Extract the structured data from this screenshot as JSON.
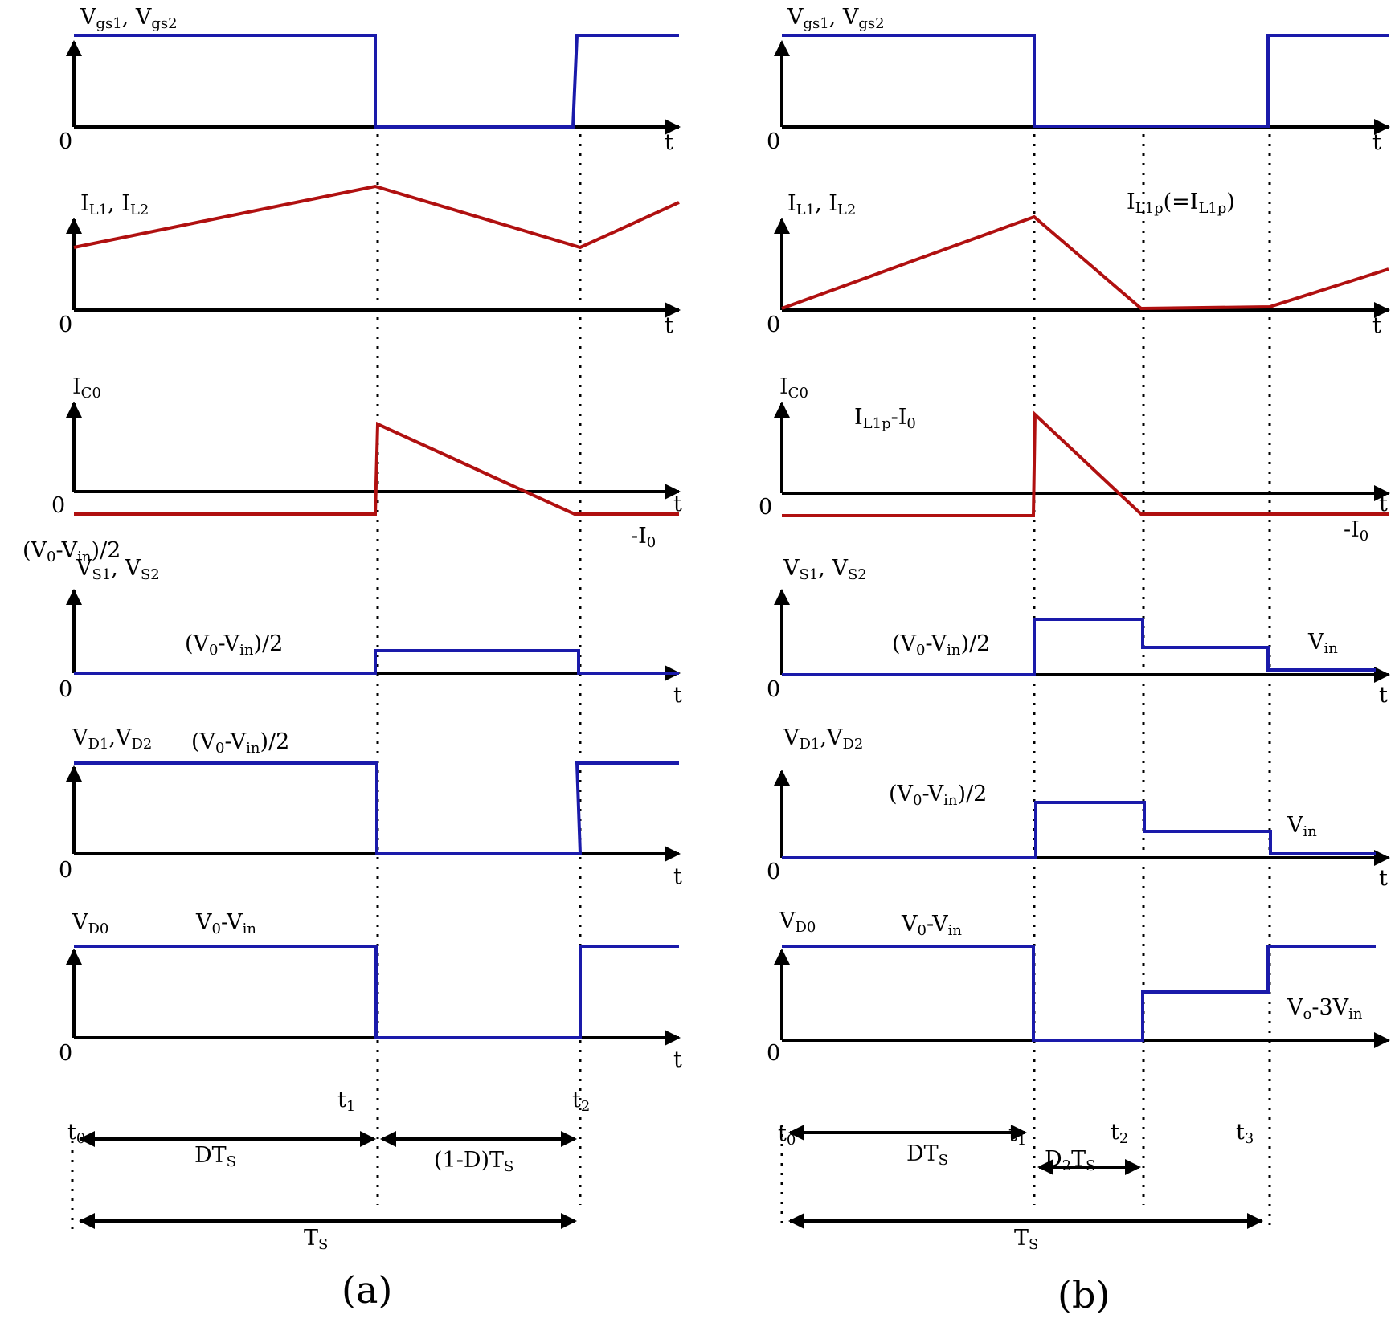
{
  "panels": {
    "a": {
      "caption": "(a)",
      "origin": "0",
      "t": "t",
      "vgs": {
        "label": "V",
        "s1": "gs1",
        "mid": ", V",
        "s2": "gs2"
      },
      "il": {
        "label": "I",
        "s1": "L1",
        "mid": ", I",
        "s2": "L2"
      },
      "ic": {
        "label": "I",
        "s1": "C0",
        "neg_pre": "-I",
        "neg_sub": "0"
      },
      "vs": {
        "label": "V",
        "s1": "S1",
        "mid": ", V",
        "s2": "S2",
        "top_a": "(V",
        "top_b": "0",
        "top_c": "-V",
        "top_d": "in",
        "top_e": ")/2",
        "lvl_a": "(V",
        "lvl_b": "0",
        "lvl_c": "-V",
        "lvl_d": "in",
        "lvl_e": ")/2"
      },
      "vd": {
        "label": "V",
        "s1": "D1",
        "mid": ",V",
        "s2": "D2",
        "lvl_a": "(V",
        "lvl_b": "0",
        "lvl_c": "-V",
        "lvl_d": "in",
        "lvl_e": ")/2"
      },
      "vd0": {
        "label": "V",
        "s1": "D0",
        "lvl_a": "V",
        "lvl_b": "0",
        "lvl_c": "-V",
        "lvl_d": "in"
      },
      "timing": {
        "t": "t",
        "t0": "0",
        "t1": "1",
        "t2": "2",
        "dts": "DT",
        "dts_sub": "S",
        "odts": "(1-D)T",
        "odts_sub": "S",
        "ts": "T",
        "ts_sub": "S"
      }
    },
    "b": {
      "caption": "(b)",
      "origin": "0",
      "t": "t",
      "vgs": {
        "label": "V",
        "s1": "gs1",
        "mid": ", V",
        "s2": "gs2"
      },
      "il": {
        "label": "I",
        "s1": "L1",
        "mid": ", I",
        "s2": "L2",
        "pk_a": "I",
        "pk_b": "L1p",
        "pk_c": "(=I",
        "pk_d": "L1p",
        "pk_e": ")"
      },
      "ic": {
        "label": "I",
        "s1": "C0",
        "pk_a": "I",
        "pk_b": "L1p",
        "pk_c": "-I",
        "pk_d": "0",
        "neg_pre": "-I",
        "neg_sub": "0"
      },
      "vs": {
        "label": "V",
        "s1": "S1",
        "mid": ", V",
        "s2": "S2",
        "lvl_a": "(V",
        "lvl_b": "0",
        "lvl_c": "-V",
        "lvl_d": "in",
        "lvl_e": ")/2",
        "vin": "V",
        "vin_sub": "in"
      },
      "vd": {
        "label": "V",
        "s1": "D1",
        "mid": ",V",
        "s2": "D2",
        "lvl_a": "(V",
        "lvl_b": "0",
        "lvl_c": "-V",
        "lvl_d": "in",
        "lvl_e": ")/2",
        "vin": "V",
        "vin_sub": "in"
      },
      "vd0": {
        "label": "V",
        "s1": "D0",
        "lvl_a": "V",
        "lvl_b": "0",
        "lvl_c": "-V",
        "lvl_d": "in",
        "lo_a": "V",
        "lo_b": "o",
        "lo_c": "-3V",
        "lo_d": "in"
      },
      "timing": {
        "t": "t",
        "t0": "0",
        "t1": "1",
        "t2": "2",
        "t3": "3",
        "dts": "DT",
        "dts_sub": "S",
        "d2ts": "D",
        "d2ts_sub": "2",
        "d2ts_t": "T",
        "d2ts_sub2": "S",
        "ts": "T",
        "ts_sub": "S"
      }
    }
  }
}
